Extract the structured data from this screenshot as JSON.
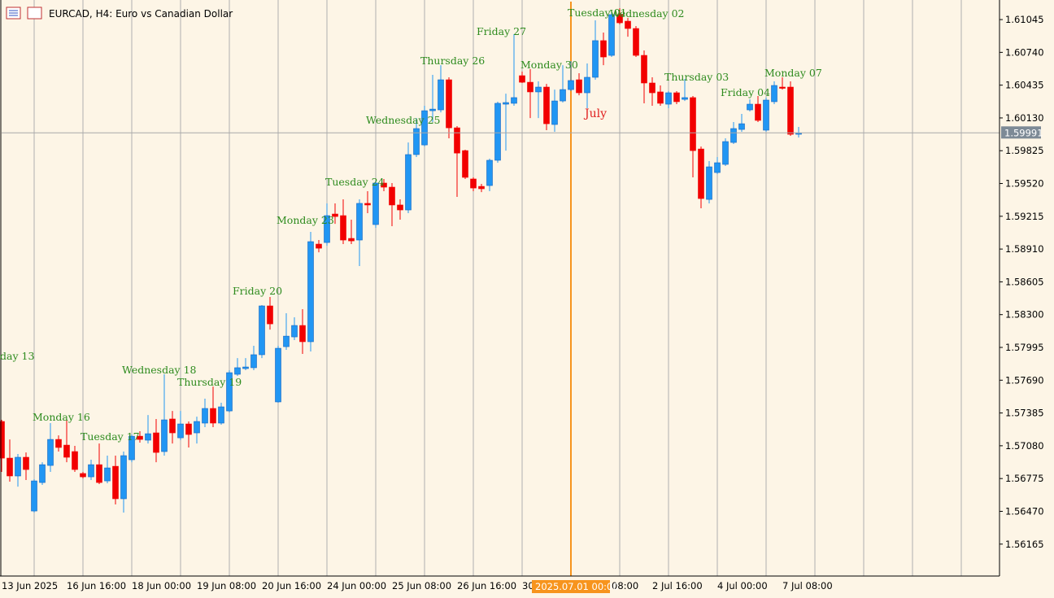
{
  "chart_data": {
    "type": "candlestick",
    "title": "EURCAD, H4:  Euro vs Canadian Dollar",
    "bull_color": "#2196f3",
    "bear_color": "#f20000",
    "series": {
      "open": [
        1.57306,
        1.56965,
        1.56799,
        1.56973,
        1.56473,
        1.56738,
        1.56897,
        1.57139,
        1.57086,
        1.57026,
        1.56822,
        1.56791,
        1.56904,
        1.56753,
        1.56889,
        1.56587,
        1.5695,
        1.57169,
        1.57132,
        1.572,
        1.57026,
        1.57329,
        1.57154,
        1.57283,
        1.572,
        1.57291,
        1.57427,
        1.57291,
        1.57404,
        1.57745,
        1.57798,
        1.57806,
        1.57927,
        1.58381,
        1.57488,
        1.58002,
        1.58093,
        1.58199,
        1.58048,
        1.58956,
        1.58971,
        1.59236,
        1.59221,
        1.59009,
        1.58994,
        1.59335,
        1.59138,
        1.59524,
        1.59486,
        1.5932,
        1.59274,
        1.59789,
        1.59879,
        1.60197,
        1.60205,
        1.60485,
        1.60038,
        1.59826,
        1.59562,
        1.59493,
        1.59501,
        1.59736,
        1.60258,
        1.60266,
        1.60523,
        1.60462,
        1.60372,
        1.60417,
        1.60069,
        1.60288,
        1.60394,
        1.60485,
        1.60364,
        1.60508,
        1.60849,
        1.60712,
        1.61091,
        1.6103,
        1.60962,
        1.60712,
        1.60455,
        1.60372,
        1.60258,
        1.60364,
        1.60303,
        1.60319,
        1.59841,
        1.59372,
        1.59622,
        1.59698,
        1.59902,
        1.60023,
        1.60205,
        1.60258,
        1.60016,
        1.60281,
        1.60417,
        1.60417,
        1.59978
      ],
      "high": [
        1.57321,
        1.57139,
        1.57003,
        1.57018,
        1.56769,
        1.56927,
        1.57291,
        1.57177,
        1.57329,
        1.57079,
        1.56837,
        1.5695,
        1.57101,
        1.56988,
        1.56988,
        1.57026,
        1.57185,
        1.57215,
        1.57366,
        1.57329,
        1.57745,
        1.57404,
        1.57404,
        1.57306,
        1.57351,
        1.57518,
        1.57631,
        1.5748,
        1.57783,
        1.57896,
        1.57896,
        1.5801,
        1.58389,
        1.58464,
        1.5801,
        1.58313,
        1.58275,
        1.58351,
        1.5907,
        1.58994,
        1.59335,
        1.59335,
        1.59373,
        1.59183,
        1.59373,
        1.59448,
        1.59547,
        1.59562,
        1.59524,
        1.59373,
        1.59902,
        1.60129,
        1.60243,
        1.60531,
        1.60621,
        1.60508,
        1.60054,
        1.59834,
        1.59577,
        1.59516,
        1.59751,
        1.60281,
        1.60356,
        1.60909,
        1.60561,
        1.60584,
        1.6047,
        1.60447,
        1.60394,
        1.60621,
        1.60659,
        1.60546,
        1.60637,
        1.61038,
        1.60924,
        1.61113,
        1.61151,
        1.6106,
        1.60985,
        1.60758,
        1.60508,
        1.60432,
        1.60379,
        1.60379,
        1.60493,
        1.60334,
        1.59864,
        1.59728,
        1.59766,
        1.5994,
        1.60092,
        1.60167,
        1.60303,
        1.60334,
        1.60319,
        1.6047,
        1.60508,
        1.6047,
        1.60046
      ],
      "low": [
        1.56837,
        1.56746,
        1.567,
        1.56761,
        1.56458,
        1.56716,
        1.56837,
        1.57026,
        1.56927,
        1.56837,
        1.56776,
        1.56761,
        1.56723,
        1.56731,
        1.56534,
        1.56458,
        1.56927,
        1.57109,
        1.57101,
        1.56927,
        1.56988,
        1.57101,
        1.57132,
        1.57064,
        1.57101,
        1.57253,
        1.57253,
        1.57276,
        1.57389,
        1.5773,
        1.57783,
        1.57783,
        1.57896,
        1.58161,
        1.5748,
        1.57972,
        1.58063,
        1.57934,
        1.57957,
        1.5888,
        1.58941,
        1.59145,
        1.58956,
        1.58956,
        1.58752,
        1.59244,
        1.59108,
        1.59448,
        1.59123,
        1.59183,
        1.59244,
        1.59766,
        1.59864,
        1.60092,
        1.60182,
        1.5994,
        1.59395,
        1.59562,
        1.59448,
        1.5944,
        1.59448,
        1.59713,
        1.59826,
        1.60243,
        1.60455,
        1.60129,
        1.60129,
        1.60016,
        1.60001,
        1.60273,
        1.60379,
        1.60341,
        1.6022,
        1.60485,
        1.60621,
        1.60697,
        1.61,
        1.60886,
        1.60697,
        1.60266,
        1.60243,
        1.60243,
        1.6022,
        1.60258,
        1.60288,
        1.59577,
        1.59289,
        1.59335,
        1.59607,
        1.59683,
        1.59887,
        1.60001,
        1.6019,
        1.60092,
        1.60001,
        1.60258,
        1.60394,
        1.59963,
        1.59948
      ],
      "close": [
        1.56965,
        1.56799,
        1.56973,
        1.56859,
        1.56753,
        1.56904,
        1.57139,
        1.57064,
        1.56973,
        1.56859,
        1.56791,
        1.56904,
        1.56738,
        1.56874,
        1.56587,
        1.56988,
        1.57169,
        1.57139,
        1.57192,
        1.57018,
        1.57321,
        1.572,
        1.57283,
        1.57185,
        1.57306,
        1.57427,
        1.57291,
        1.57442,
        1.5776,
        1.57806,
        1.57813,
        1.57927,
        1.58381,
        1.58214,
        1.57987,
        1.581,
        1.58199,
        1.58048,
        1.58979,
        1.58918,
        1.59221,
        1.59213,
        1.58994,
        1.58986,
        1.59335,
        1.5932,
        1.59524,
        1.59486,
        1.5932,
        1.59274,
        1.59789,
        1.60031,
        1.60197,
        1.60212,
        1.60485,
        1.60038,
        1.59803,
        1.59577,
        1.59478,
        1.59471,
        1.59736,
        1.60266,
        1.60273,
        1.60319,
        1.60462,
        1.60372,
        1.60417,
        1.60076,
        1.60288,
        1.60394,
        1.60478,
        1.60364,
        1.60508,
        1.60849,
        1.60697,
        1.61091,
        1.61015,
        1.60962,
        1.60712,
        1.60455,
        1.60364,
        1.60266,
        1.60364,
        1.60281,
        1.60319,
        1.59826,
        1.5938,
        1.59675,
        1.59713,
        1.5991,
        1.60031,
        1.60076,
        1.60258,
        1.60107,
        1.60296,
        1.60432,
        1.60409,
        1.59978,
        1.59991
      ]
    },
    "ylim": [
      1.55868,
      1.61212
    ],
    "yticks": [
      1.56165,
      {
        "value": 1.5647,
        "label": "1.56470"
      },
      1.56775,
      {
        "value": 1.5708,
        "label": "1.57080"
      },
      1.57385,
      {
        "value": 1.5769,
        "label": "1.57690"
      },
      1.57995,
      {
        "value": 1.583,
        "label": "1.58300"
      },
      1.58605,
      {
        "value": 1.5891,
        "label": "1.58910"
      },
      1.59215,
      {
        "value": 1.5952,
        "label": "1.59520"
      },
      1.59825,
      {
        "value": 1.6013,
        "label": "1.60130"
      },
      1.60435,
      {
        "value": 1.6074,
        "label": "1.60740"
      },
      1.61045
    ],
    "last_price": 1.59991,
    "x_labels": [
      "13 Jun 2025",
      "16 Jun 16:00",
      "18 Jun 00:00",
      "19 Jun 08:00",
      "20 Jun 16:00",
      "24 Jun 00:00",
      "25 Jun 08:00",
      "26 Jun 16:00",
      "30",
      "08:00",
      "2 Jul 16:00",
      "4 Jul 00:00",
      "7 Jul 08:00"
    ],
    "crosshair_label": "2025.07.01 00:00",
    "annotations": [
      "day 13",
      "Monday 16",
      "Tuesday 17",
      "Wednesday 18",
      "Thursday 19",
      "Friday 20",
      "Monday 23",
      "Tuesday 24",
      "Wednesday 25",
      "Thursday 26",
      "Friday 27",
      "Monday 30",
      "Tuesday 01",
      "Wednesday 02",
      "Thursday 03",
      "Friday 04",
      "Monday 07"
    ],
    "month_label": "July"
  }
}
